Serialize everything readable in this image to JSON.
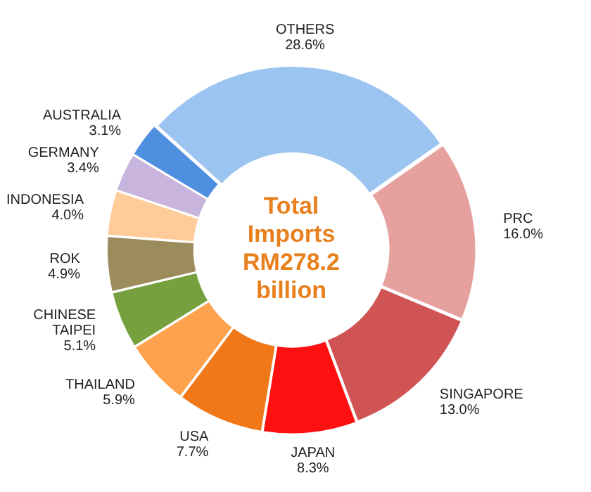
{
  "chart_data": {
    "type": "donut",
    "title": "Total Imports RM278.2 billion",
    "categories": [
      "PRC",
      "SINGAPORE",
      "JAPAN",
      "USA",
      "THAILAND",
      "CHINESE TAIPEI",
      "ROK",
      "INDONESIA",
      "GERMANY",
      "AUSTRALIA",
      "OTHERS"
    ],
    "values": [
      16.0,
      13.0,
      8.3,
      7.7,
      5.9,
      5.1,
      4.9,
      4.0,
      3.4,
      3.1,
      28.6
    ],
    "colors": [
      "#e6a09e",
      "#d05454",
      "#ff1010",
      "#f07818",
      "#ffa24e",
      "#76a03e",
      "#9c8c5c",
      "#ffcc99",
      "#c8b4dc",
      "#4f8fe0",
      "#9cc4f0"
    ],
    "value_labels": [
      "16.0%",
      "13.0%",
      "8.3%",
      "7.7%",
      "5.9%",
      "5.1%",
      "4.9%",
      "4.0%",
      "3.4%",
      "3.1%",
      "28.6%"
    ],
    "legend": false
  }
}
